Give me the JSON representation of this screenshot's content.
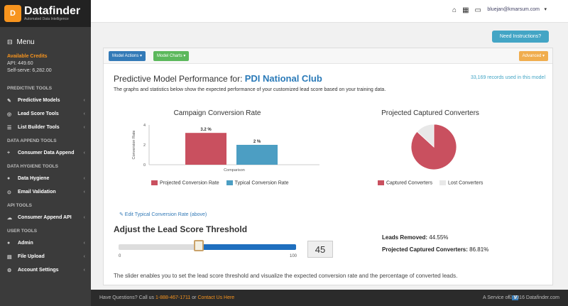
{
  "brand": {
    "logo": "D",
    "name": "Datafinder",
    "tagline": "Automated Data Intelligence"
  },
  "menu_label": "Menu",
  "credits": {
    "title": "Available Credits",
    "api": "API: 449.60",
    "selfserve": "Self-serve: 6,282.00"
  },
  "sidebar": {
    "sections": [
      {
        "title": "PREDICTIVE TOOLS",
        "items": [
          {
            "label": "Predictive Models",
            "icon": "wrench-icon",
            "glyph": "✎"
          },
          {
            "label": "Lead Score Tools",
            "icon": "target-icon",
            "glyph": "◎"
          },
          {
            "label": "List Builder Tools",
            "icon": "list-icon",
            "glyph": "☰"
          }
        ]
      },
      {
        "title": "DATA APPEND TOOLS",
        "items": [
          {
            "label": "Consumer Data Append",
            "icon": "plus-icon",
            "glyph": "+"
          }
        ]
      },
      {
        "title": "DATA HYGIENE TOOLS",
        "items": [
          {
            "label": "Data Hygiene",
            "icon": "drop-icon",
            "glyph": "●"
          },
          {
            "label": "Email Validation",
            "icon": "check-circle-icon",
            "glyph": "⊙"
          }
        ]
      },
      {
        "title": "API TOOLS",
        "items": [
          {
            "label": "Consumer Append API",
            "icon": "cloud-icon",
            "glyph": "☁"
          }
        ]
      },
      {
        "title": "USER TOOLS",
        "items": [
          {
            "label": "Admin",
            "icon": "user-icon",
            "glyph": "●"
          },
          {
            "label": "File Upload",
            "icon": "file-icon",
            "glyph": "▤"
          },
          {
            "label": "Account Settings",
            "icon": "gear-icon",
            "glyph": "⚙"
          }
        ]
      }
    ]
  },
  "topbar": {
    "user_email": "bluejan@kmarsum.com",
    "caret": "▾"
  },
  "instructions_btn": "Need Instructions?",
  "panel": {
    "model_actions": "Model Actions ▾",
    "model_charts": "Model Charts ▾",
    "advanced": "Advanced ▾",
    "title_prefix": "Predictive Model Performance for:",
    "club_name": "PDI National Club",
    "records": "33,169 records used in this model",
    "description": "The graphs and statistics below show the expected performance of your customized lead score based on your training data.",
    "edit_link": "✎ Edit Typical Conversion Rate (above)",
    "adjust_title": "Adjust the Lead Score Threshold",
    "slider": {
      "min": "0",
      "max": "100",
      "value": "45",
      "position": 0.45
    },
    "leads_removed_label": "Leads Removed:",
    "leads_removed_value": "44.55%",
    "captured_label": "Projected Captured Converters:",
    "captured_value": "86.81%",
    "explain": "The slider enables you to set the lead score threshold and visualize the expected conversion rate and the percentage of converted leads."
  },
  "chart_data": [
    {
      "type": "bar",
      "title": "Campaign Conversion Rate",
      "xlabel": "Comparison",
      "ylabel": "Conversion Rate",
      "ylim": [
        0,
        4
      ],
      "yticks": [
        "0",
        "2",
        "4"
      ],
      "categories": [
        "Projected Conversion Rate",
        "Typical Conversion Rate"
      ],
      "values": [
        3.2,
        2.0
      ],
      "data_labels": [
        "3.2 %",
        "2 %"
      ],
      "colors": [
        "#c9505f",
        "#4c9ec3"
      ]
    },
    {
      "type": "pie",
      "title": "Projected Captured Converters",
      "labels": [
        "Captured Converters",
        "Lost Converters"
      ],
      "values": [
        86.81,
        13.19
      ],
      "colors": [
        "#c9505f",
        "#e8e8e8"
      ]
    }
  ],
  "footer": {
    "question": "Have Questions? Call us",
    "phone": "1-888-467-1711",
    "or": "or",
    "contact": "Contact Us Here",
    "service": "A Service of",
    "service_logo": "V",
    "copyright": "© 2016 Datafinder.com"
  }
}
